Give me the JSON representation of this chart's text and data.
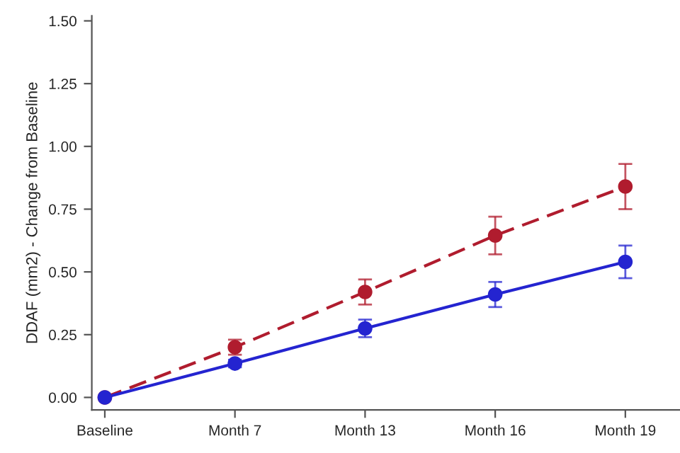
{
  "chart_data": {
    "type": "line",
    "ylabel": "DDAF (mm2) - Change from Baseline",
    "categories": [
      "Baseline",
      "Month 7",
      "Month 13",
      "Month 16",
      "Month 19"
    ],
    "series": [
      {
        "color": "#b01c2e",
        "line_style": "dashed",
        "values": [
          0,
          0.2,
          0.42,
          0.645,
          0.84
        ],
        "errors": [
          null,
          0.03,
          0.05,
          0.075,
          0.09
        ]
      },
      {
        "color": "#2424d0",
        "line_style": "solid",
        "values": [
          0,
          0.135,
          0.275,
          0.41,
          0.54
        ],
        "errors": [
          null,
          0.015,
          0.035,
          0.05,
          0.065
        ]
      }
    ],
    "marker": "circle",
    "ylim": [
      -0.05,
      1.52
    ],
    "yticks": [
      {
        "value": 0,
        "label": "0.00"
      },
      {
        "value": 0.25,
        "label": "0.25"
      },
      {
        "value": 0.5,
        "label": "0.50"
      },
      {
        "value": 0.75,
        "label": "0.75"
      },
      {
        "value": 1,
        "label": "1.00"
      },
      {
        "value": 1.25,
        "label": "1.25"
      },
      {
        "value": 1.5,
        "label": "1.50"
      }
    ],
    "grid": false,
    "legend": false
  }
}
